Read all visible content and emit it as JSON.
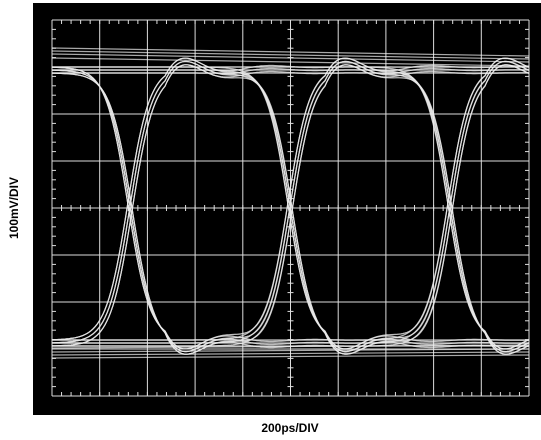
{
  "y_label": "100mV/DIV",
  "x_label": "200ps/DIV"
}
